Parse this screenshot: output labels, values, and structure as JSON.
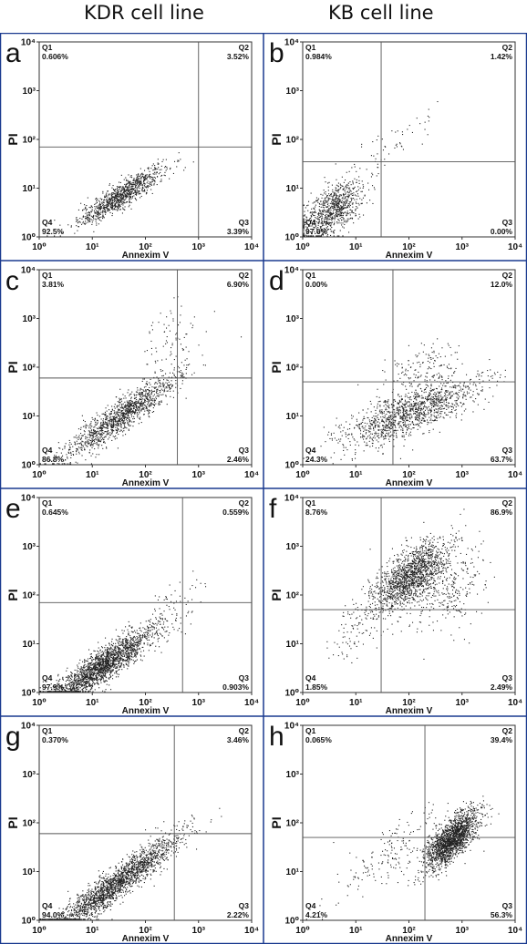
{
  "column_titles": [
    "KDR cell line",
    "KB cell line"
  ],
  "colors": {
    "grid_border": "#1a3a8f",
    "dots": "#222222",
    "axes": "#333333"
  },
  "chart_data": [
    {
      "type": "scatter",
      "panel_label": "a",
      "column": "KDR cell line",
      "xlabel": "Annexim V",
      "ylabel": "PI",
      "xscale": "log",
      "yscale": "log",
      "xlim": [
        1,
        10000
      ],
      "ylim": [
        1,
        10000
      ],
      "x_ticks": [
        "10^0",
        "10^1",
        "10^2",
        "10^3",
        "10^4"
      ],
      "y_ticks": [
        "10^0",
        "10^1",
        "10^2",
        "10^3",
        "10^4"
      ],
      "gate": {
        "x": 1000,
        "y": 70
      },
      "quadrants": {
        "Q1": "0.606%",
        "Q2": "3.52%",
        "Q3": "3.39%",
        "Q4": "92.5%"
      },
      "clusters": [
        {
          "cx": 1.55,
          "cy": 0.85,
          "sx": 0.4,
          "sy": 0.3,
          "rho": 0.9,
          "n": 1000,
          "xmax": 3.5
        }
      ]
    },
    {
      "type": "scatter",
      "panel_label": "b",
      "column": "KB cell line",
      "xlabel": "Annexim V",
      "ylabel": "PI",
      "xscale": "log",
      "yscale": "log",
      "xlim": [
        1,
        10000
      ],
      "ylim": [
        1,
        10000
      ],
      "x_ticks": [
        "10^0",
        "10^1",
        "10^2",
        "10^3",
        "10^4"
      ],
      "y_ticks": [
        "10^0",
        "10^1",
        "10^2",
        "10^3",
        "10^4"
      ],
      "gate": {
        "x": 30,
        "y": 35
      },
      "quadrants": {
        "Q1": "0.984%",
        "Q2": "1.42%",
        "Q3": "0.00%",
        "Q4": "97.6%"
      },
      "clusters": [
        {
          "cx": 0.55,
          "cy": 0.55,
          "sx": 0.3,
          "sy": 0.3,
          "rho": 0.6,
          "n": 850
        },
        {
          "cx": 1.7,
          "cy": 1.9,
          "sx": 0.45,
          "sy": 0.4,
          "rho": 0.8,
          "n": 50
        }
      ]
    },
    {
      "type": "scatter",
      "panel_label": "c",
      "column": "KDR cell line",
      "xlabel": "Annexim V",
      "ylabel": "PI",
      "xscale": "log",
      "yscale": "log",
      "xlim": [
        1,
        10000
      ],
      "ylim": [
        1,
        10000
      ],
      "x_ticks": [
        "10^0",
        "10^1",
        "10^2",
        "10^3",
        "10^4"
      ],
      "y_ticks": [
        "10^0",
        "10^1",
        "10^2",
        "10^3",
        "10^4"
      ],
      "gate": {
        "x": 400,
        "y": 60
      },
      "quadrants": {
        "Q1": "3.81%",
        "Q2": "6.90%",
        "Q3": "2.46%",
        "Q4": "86.8%"
      },
      "clusters": [
        {
          "cx": 1.55,
          "cy": 1.0,
          "sx": 0.55,
          "sy": 0.45,
          "rho": 0.92,
          "n": 1300
        },
        {
          "cx": 2.5,
          "cy": 2.5,
          "sx": 0.3,
          "sy": 0.5,
          "rho": 0.5,
          "n": 80
        }
      ]
    },
    {
      "type": "scatter",
      "panel_label": "d",
      "column": "KB cell line",
      "xlabel": "Annexim V",
      "ylabel": "PI",
      "xscale": "log",
      "yscale": "log",
      "xlim": [
        1,
        10000
      ],
      "ylim": [
        1,
        10000
      ],
      "x_ticks": [
        "10^0",
        "10^1",
        "10^2",
        "10^3",
        "10^4"
      ],
      "y_ticks": [
        "10^0",
        "10^1",
        "10^2",
        "10^3",
        "10^4"
      ],
      "gate": {
        "x": 50,
        "y": 50
      },
      "quadrants": {
        "Q1": "0.00%",
        "Q2": "12.0%",
        "Q3": "63.7%",
        "Q4": "24.3%"
      },
      "clusters": [
        {
          "cx": 2.0,
          "cy": 1.05,
          "sx": 0.65,
          "sy": 0.35,
          "rho": 0.75,
          "n": 1300
        },
        {
          "cx": 2.3,
          "cy": 2.0,
          "sx": 0.35,
          "sy": 0.3,
          "rho": 0.5,
          "n": 150
        }
      ]
    },
    {
      "type": "scatter",
      "panel_label": "e",
      "column": "KDR cell line",
      "xlabel": "Annexim V",
      "ylabel": "PI",
      "xscale": "log",
      "yscale": "log",
      "xlim": [
        1,
        10000
      ],
      "ylim": [
        1,
        10000
      ],
      "x_ticks": [
        "10^0",
        "10^1",
        "10^2",
        "10^3",
        "10^4"
      ],
      "y_ticks": [
        "10^0",
        "10^1",
        "10^2",
        "10^3",
        "10^4"
      ],
      "gate": {
        "x": 500,
        "y": 70
      },
      "quadrants": {
        "Q1": "0.645%",
        "Q2": "0.559%",
        "Q3": "0.903%",
        "Q4": "97.9%"
      },
      "clusters": [
        {
          "cx": 1.2,
          "cy": 0.55,
          "sx": 0.5,
          "sy": 0.4,
          "rho": 0.9,
          "n": 2000
        },
        {
          "cx": 2.5,
          "cy": 1.7,
          "sx": 0.3,
          "sy": 0.4,
          "rho": 0.6,
          "n": 60
        }
      ]
    },
    {
      "type": "scatter",
      "panel_label": "f",
      "column": "KB cell line",
      "xlabel": "Annexim V",
      "ylabel": "PI",
      "xscale": "log",
      "yscale": "log",
      "xlim": [
        1,
        10000
      ],
      "ylim": [
        1,
        10000
      ],
      "x_ticks": [
        "10^0",
        "10^1",
        "10^2",
        "10^3",
        "10^4"
      ],
      "y_ticks": [
        "10^0",
        "10^1",
        "10^2",
        "10^3",
        "10^4"
      ],
      "gate": {
        "x": 30,
        "y": 50
      },
      "quadrants": {
        "Q1": "8.76%",
        "Q2": "86.9%",
        "Q3": "2.49%",
        "Q4": "1.85%"
      },
      "clusters": [
        {
          "cx": 2.05,
          "cy": 2.4,
          "sx": 0.35,
          "sy": 0.35,
          "rho": 0.6,
          "n": 1500
        },
        {
          "cx": 2.8,
          "cy": 2.1,
          "sx": 0.35,
          "sy": 0.45,
          "rho": 0.4,
          "n": 250
        },
        {
          "cx": 1.1,
          "cy": 1.4,
          "sx": 0.3,
          "sy": 0.4,
          "rho": 0.7,
          "n": 120
        }
      ]
    },
    {
      "type": "scatter",
      "panel_label": "g",
      "column": "KDR cell line",
      "xlabel": "Annexim V",
      "ylabel": "PI",
      "xscale": "log",
      "yscale": "log",
      "xlim": [
        1,
        10000
      ],
      "ylim": [
        1,
        10000
      ],
      "x_ticks": [
        "10^0",
        "10^1",
        "10^2",
        "10^3",
        "10^4"
      ],
      "y_ticks": [
        "10^0",
        "10^1",
        "10^2",
        "10^3",
        "10^4"
      ],
      "gate": {
        "x": 350,
        "y": 60
      },
      "quadrants": {
        "Q1": "0.370%",
        "Q2": "3.46%",
        "Q3": "2.22%",
        "Q4": "94.0%"
      },
      "clusters": [
        {
          "cx": 1.45,
          "cy": 0.75,
          "sx": 0.6,
          "sy": 0.5,
          "rho": 0.94,
          "n": 2000
        }
      ]
    },
    {
      "type": "scatter",
      "panel_label": "h",
      "column": "KB cell line",
      "xlabel": "Annexim V",
      "ylabel": "PI",
      "xscale": "log",
      "yscale": "log",
      "xlim": [
        1,
        10000
      ],
      "ylim": [
        1,
        10000
      ],
      "x_ticks": [
        "10^0",
        "10^1",
        "10^2",
        "10^3",
        "10^4"
      ],
      "y_ticks": [
        "10^0",
        "10^1",
        "10^2",
        "10^3",
        "10^4"
      ],
      "gate": {
        "x": 200,
        "y": 50
      },
      "quadrants": {
        "Q1": "0.065%",
        "Q2": "39.4%",
        "Q3": "56.3%",
        "Q4": "4.21%"
      },
      "clusters": [
        {
          "cx": 2.8,
          "cy": 1.65,
          "sx": 0.25,
          "sy": 0.3,
          "rho": 0.7,
          "n": 1800
        },
        {
          "cx": 1.7,
          "cy": 1.4,
          "sx": 0.55,
          "sy": 0.5,
          "rho": 0.8,
          "n": 180
        }
      ]
    }
  ]
}
